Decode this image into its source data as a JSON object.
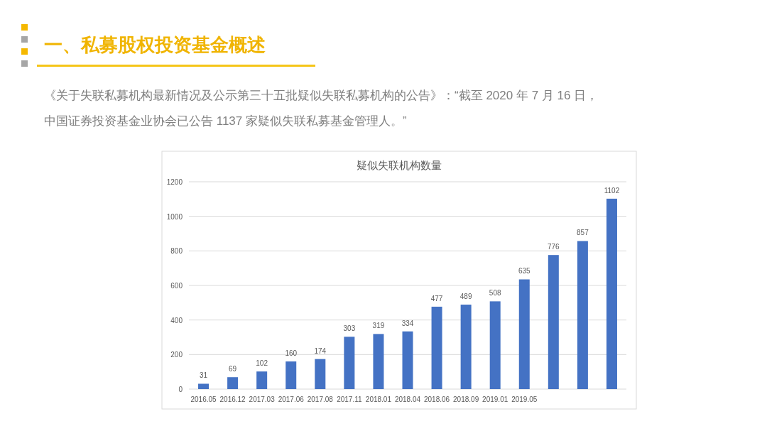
{
  "chart_data": {
    "type": "bar",
    "title": "疑似失联机构数量",
    "annotations": [
      "一、私募股权投资基金概述",
      "《关于失联私募机构最新情况及公示第三十五批疑似失联私募机构的公告》：“截至 2020 年 7 月 16 日，",
      "中国证券投资基金业协会已公告 1137 家疑似失联私募基金管理人。”"
    ],
    "categories": [
      "2016.05",
      "2016.12",
      "2017.03",
      "2017.06",
      "2017.08",
      "2017.11",
      "2018.01",
      "2018.04",
      "2018.06",
      "2018.09",
      "2019.01",
      "2019.05",
      null,
      null,
      null
    ],
    "values": [
      31,
      69,
      102,
      160,
      174,
      303,
      319,
      334,
      477,
      489,
      508,
      635,
      776,
      857,
      1102
    ],
    "color": "#4472c4",
    "ylim": [
      0,
      1200
    ],
    "yticks": [
      0,
      200,
      400,
      600,
      800,
      1000,
      1200
    ],
    "grid": "y",
    "data_labels": true
  }
}
